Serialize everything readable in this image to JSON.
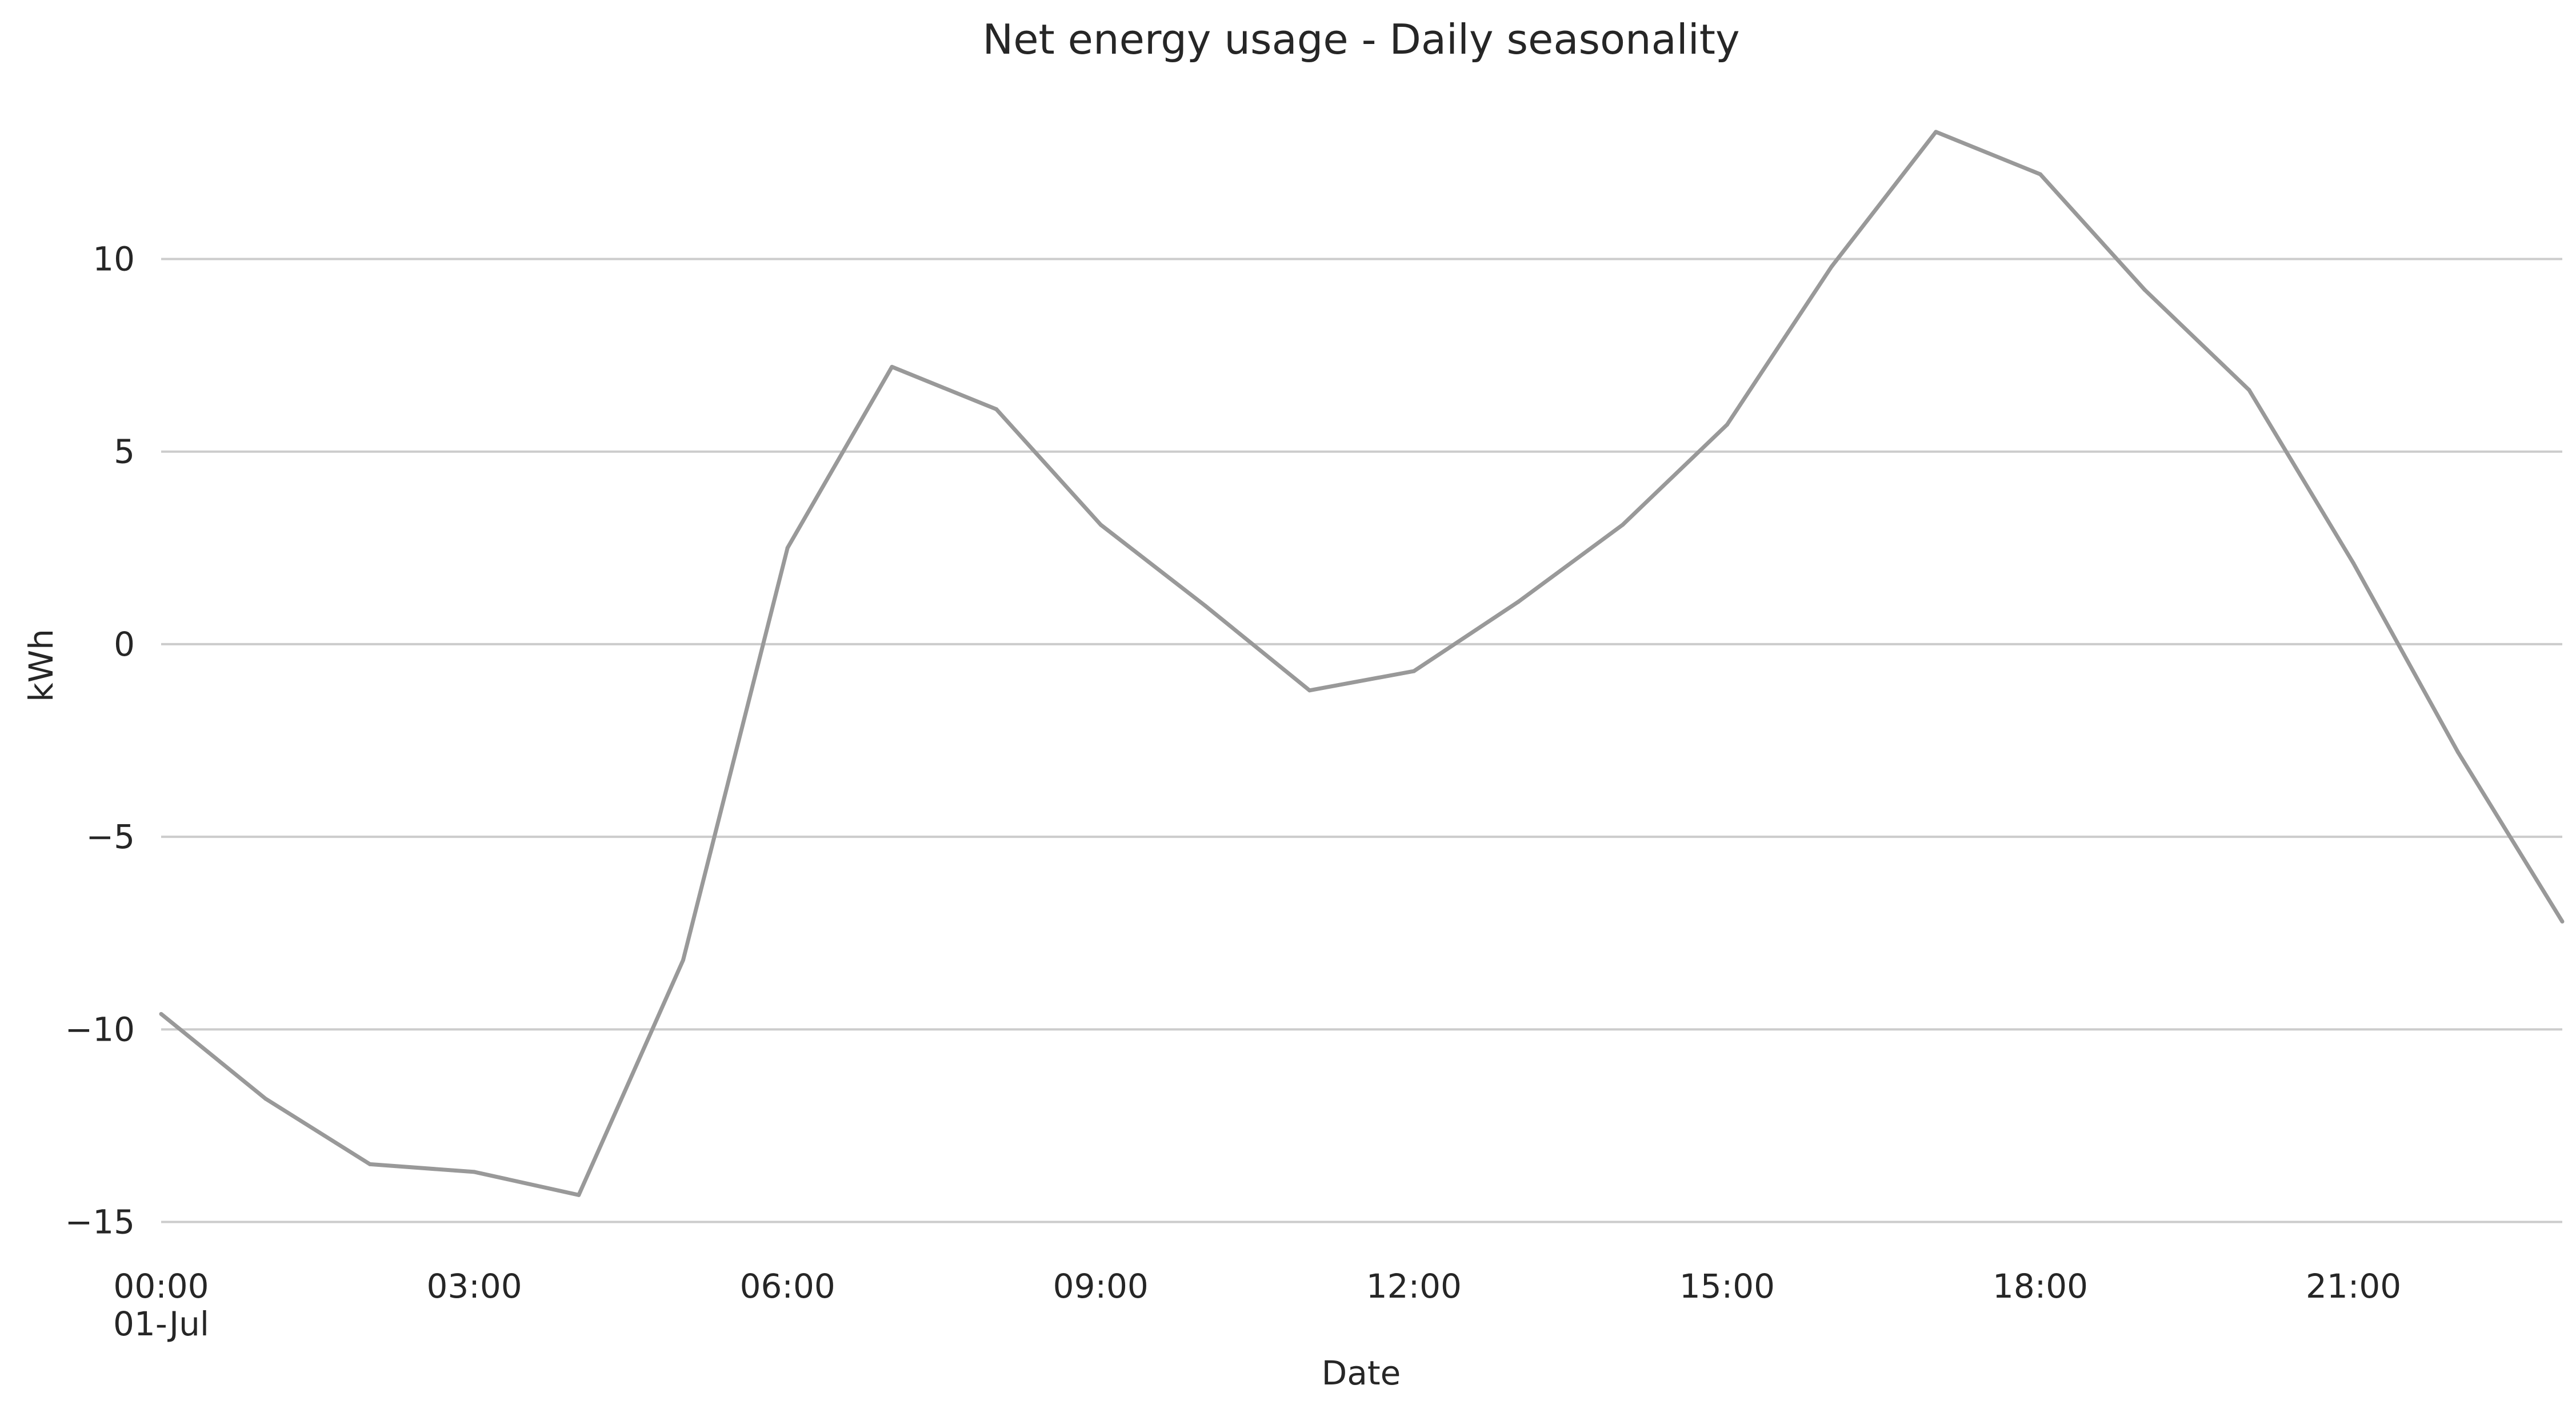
{
  "chart_data": {
    "type": "line",
    "title": "Net energy usage - Daily seasonality",
    "xlabel": "Date",
    "ylabel": "kWh",
    "x": [
      "00:00",
      "01:00",
      "02:00",
      "03:00",
      "04:00",
      "05:00",
      "06:00",
      "07:00",
      "08:00",
      "09:00",
      "10:00",
      "11:00",
      "12:00",
      "13:00",
      "14:00",
      "15:00",
      "16:00",
      "17:00",
      "18:00",
      "19:00",
      "20:00",
      "21:00",
      "22:00",
      "23:00"
    ],
    "series": [
      {
        "values": [
          -9.6,
          -11.8,
          -13.5,
          -13.7,
          -14.3,
          -8.2,
          2.5,
          7.2,
          6.1,
          3.1,
          1.0,
          -1.2,
          -0.7,
          1.1,
          3.1,
          5.7,
          9.8,
          13.3,
          12.2,
          9.2,
          6.6,
          2.1,
          -2.8,
          -7.2
        ],
        "color": "#999999"
      }
    ],
    "ylim": [
      -15.6,
      14.5
    ],
    "yticks": [
      {
        "value": -15,
        "label": "−15"
      },
      {
        "value": -10,
        "label": "−10"
      },
      {
        "value": -5,
        "label": "−5"
      },
      {
        "value": 0,
        "label": "0"
      },
      {
        "value": 5,
        "label": "5"
      },
      {
        "value": 10,
        "label": "10"
      }
    ],
    "xticks": [
      {
        "hour": 0,
        "label": "00:00",
        "sublabel": "01-Jul"
      },
      {
        "hour": 3,
        "label": "03:00"
      },
      {
        "hour": 6,
        "label": "06:00"
      },
      {
        "hour": 9,
        "label": "09:00"
      },
      {
        "hour": 12,
        "label": "12:00"
      },
      {
        "hour": 15,
        "label": "15:00"
      },
      {
        "hour": 18,
        "label": "18:00"
      },
      {
        "hour": 21,
        "label": "21:00"
      }
    ],
    "grid": "horizontal",
    "grid_color": "#cccccc",
    "legend": "none"
  }
}
